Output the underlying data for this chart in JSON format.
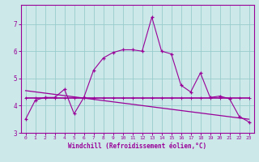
{
  "xlabel": "Windchill (Refroidissement éolien,°C)",
  "ylabel": "",
  "bg_color": "#cce8e8",
  "line_color": "#990099",
  "grid_color": "#99cccc",
  "xlim": [
    -0.5,
    23.5
  ],
  "ylim": [
    3.0,
    7.7
  ],
  "xticks": [
    0,
    1,
    2,
    3,
    4,
    5,
    6,
    7,
    8,
    9,
    10,
    11,
    12,
    13,
    14,
    15,
    16,
    17,
    18,
    19,
    20,
    21,
    22,
    23
  ],
  "yticks": [
    3,
    4,
    5,
    6,
    7
  ],
  "curve1_x": [
    0,
    1,
    2,
    3,
    4,
    5,
    6,
    7,
    8,
    9,
    10,
    11,
    12,
    13,
    14,
    15,
    16,
    17,
    18,
    19,
    20,
    21,
    22,
    23
  ],
  "curve1_y": [
    3.5,
    4.2,
    4.3,
    4.3,
    4.6,
    3.7,
    4.3,
    5.3,
    5.75,
    5.95,
    6.05,
    6.05,
    6.0,
    7.25,
    6.0,
    5.9,
    4.75,
    4.5,
    5.2,
    4.3,
    4.35,
    4.25,
    3.6,
    3.4
  ],
  "curve2_x": [
    0,
    1,
    2,
    3,
    4,
    5,
    6,
    7,
    8,
    9,
    10,
    11,
    12,
    13,
    14,
    15,
    16,
    17,
    18,
    19,
    20,
    21,
    22,
    23
  ],
  "curve2_y": [
    4.28,
    4.28,
    4.28,
    4.28,
    4.28,
    4.28,
    4.28,
    4.28,
    4.28,
    4.28,
    4.28,
    4.28,
    4.28,
    4.28,
    4.28,
    4.28,
    4.28,
    4.28,
    4.28,
    4.28,
    4.28,
    4.28,
    4.28,
    4.28
  ],
  "curve3_x": [
    0,
    23
  ],
  "curve3_y": [
    4.55,
    3.5
  ],
  "marker": "+"
}
